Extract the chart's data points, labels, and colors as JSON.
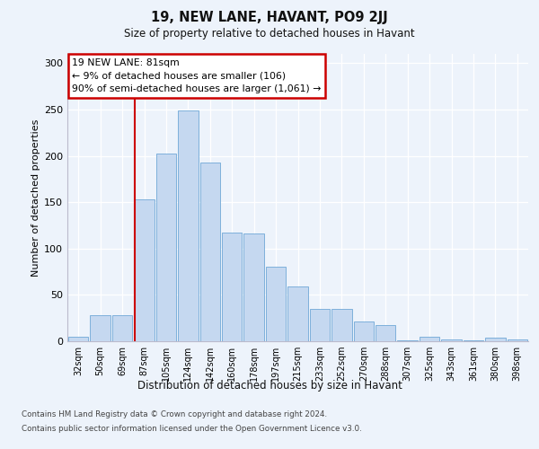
{
  "title1": "19, NEW LANE, HAVANT, PO9 2JJ",
  "title2": "Size of property relative to detached houses in Havant",
  "xlabel": "Distribution of detached houses by size in Havant",
  "ylabel": "Number of detached properties",
  "categories": [
    "32sqm",
    "50sqm",
    "69sqm",
    "87sqm",
    "105sqm",
    "124sqm",
    "142sqm",
    "160sqm",
    "178sqm",
    "197sqm",
    "215sqm",
    "233sqm",
    "252sqm",
    "270sqm",
    "288sqm",
    "307sqm",
    "325sqm",
    "343sqm",
    "361sqm",
    "380sqm",
    "398sqm"
  ],
  "values": [
    5,
    28,
    28,
    153,
    202,
    249,
    193,
    117,
    116,
    80,
    59,
    35,
    35,
    21,
    17,
    1,
    5,
    2,
    1,
    4,
    2
  ],
  "bar_color": "#c5d8f0",
  "bar_edge_color": "#6fa8d6",
  "vline_color": "#cc0000",
  "vline_pos": 2.57,
  "annotation_text": "19 NEW LANE: 81sqm\n← 9% of detached houses are smaller (106)\n90% of semi-detached houses are larger (1,061) →",
  "ylim": [
    0,
    310
  ],
  "yticks": [
    0,
    50,
    100,
    150,
    200,
    250,
    300
  ],
  "footer1": "Contains HM Land Registry data © Crown copyright and database right 2024.",
  "footer2": "Contains public sector information licensed under the Open Government Licence v3.0.",
  "bg_color": "#edf3fb"
}
